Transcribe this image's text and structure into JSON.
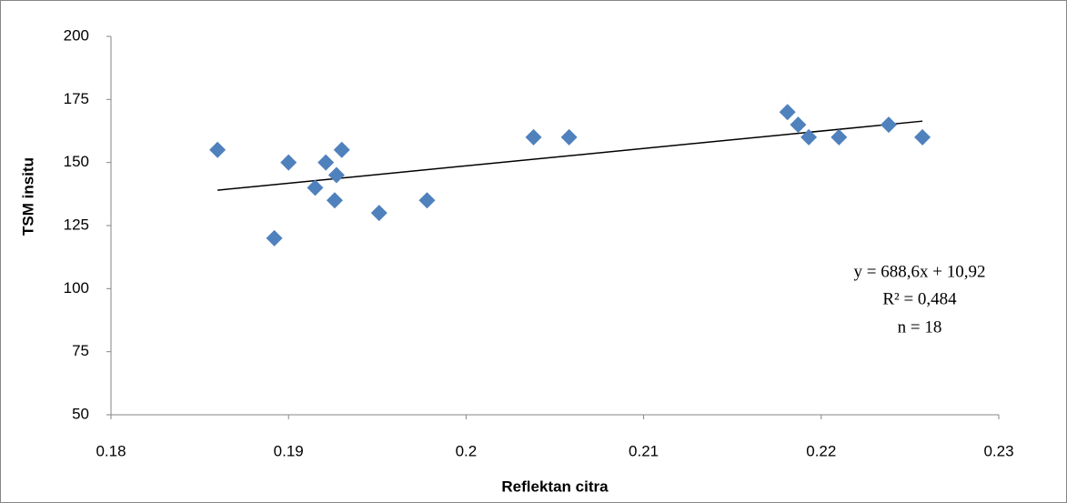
{
  "chart_data": {
    "type": "scatter",
    "xlabel": "Reflektan citra",
    "ylabel": "TSM insitu",
    "annotations": [
      "y = 688,6x + 10,92",
      "R² = 0,484",
      "n = 18"
    ],
    "series": [
      {
        "color": "#4f81bd",
        "x": [
          0.186,
          0.1892,
          0.19,
          0.1915,
          0.1921,
          0.1926,
          0.1927,
          0.193,
          0.1951,
          0.1978,
          0.2038,
          0.2058,
          0.2181,
          0.2187,
          0.2193,
          0.221,
          0.2238,
          0.2257
        ],
        "values": [
          155,
          120,
          150,
          140,
          150,
          135,
          145,
          155,
          130,
          135,
          160,
          160,
          170,
          165,
          160,
          160,
          165,
          160
        ]
      }
    ],
    "trendline": true,
    "xlim": [
      0.18,
      0.23
    ],
    "xticks": [
      0.18,
      0.19,
      0.2,
      0.21,
      0.22,
      0.23
    ],
    "ylim": [
      50,
      200
    ],
    "yticks": [
      50,
      75,
      100,
      125,
      150,
      175,
      200
    ]
  }
}
